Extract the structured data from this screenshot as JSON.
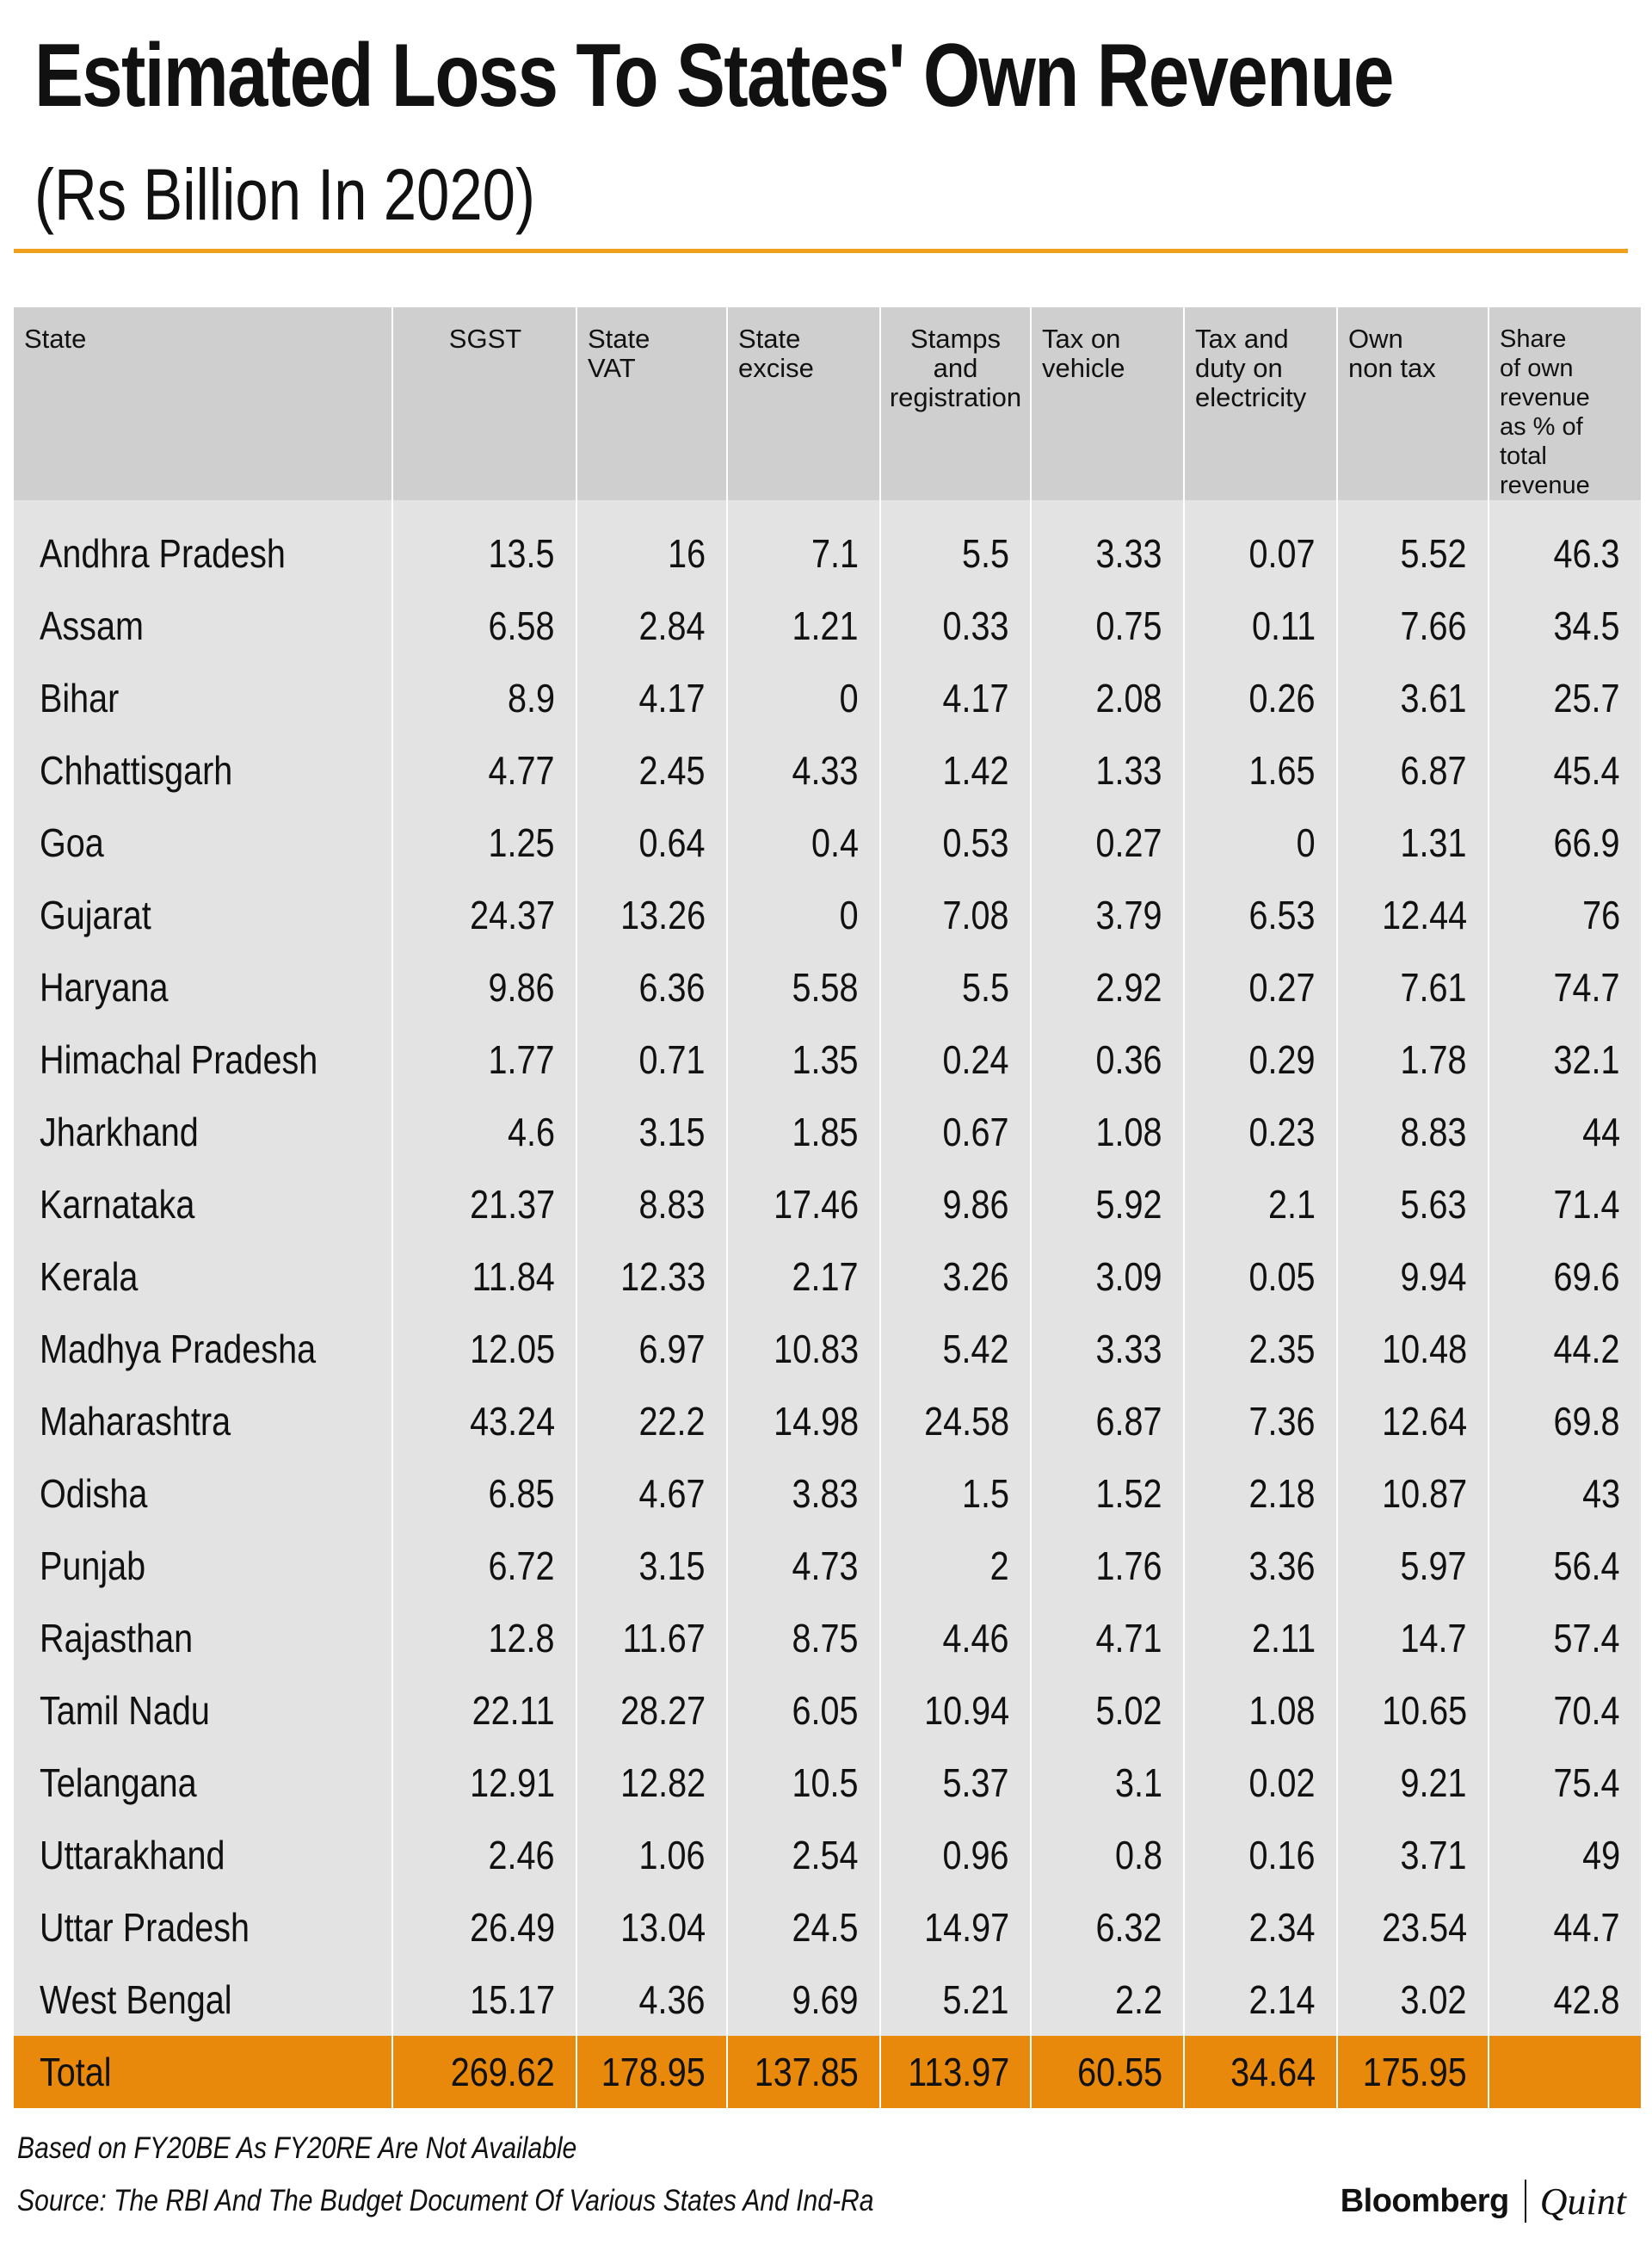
{
  "title": "Estimated Loss To States' Own Revenue",
  "subtitle": "(Rs Billion In 2020)",
  "colors": {
    "accent_rule": "#f0a01c",
    "total_row": "#e8890c",
    "header_bg": "#cfcfcf",
    "body_bg": "#e3e3e3"
  },
  "chart_data": {
    "type": "table",
    "title": "Estimated Loss To States' Own Revenue",
    "subtitle": "(Rs Billion In 2020)",
    "columns": [
      "State",
      "SGST",
      "State VAT",
      "State excise",
      "Stamps and registration",
      "Tax on vehicle",
      "Tax and duty on electricity",
      "Own non tax",
      "Share of own revenue as % of total revenue"
    ],
    "header_lines": [
      [
        "State"
      ],
      [
        "SGST"
      ],
      [
        "State",
        "VAT"
      ],
      [
        "State",
        "excise"
      ],
      [
        "Stamps",
        "and",
        "registration"
      ],
      [
        "Tax on",
        "vehicle"
      ],
      [
        "Tax and",
        "duty on",
        "electricity"
      ],
      [
        "Own",
        "non tax"
      ],
      [
        "Share",
        "of own",
        "revenue",
        "as % of total",
        "revenue"
      ]
    ],
    "rows": [
      [
        "Andhra Pradesh",
        "13.5",
        "16",
        "7.1",
        "5.5",
        "3.33",
        "0.07",
        "5.52",
        "46.3"
      ],
      [
        "Assam",
        "6.58",
        "2.84",
        "1.21",
        "0.33",
        "0.75",
        "0.11",
        "7.66",
        "34.5"
      ],
      [
        "Bihar",
        "8.9",
        "4.17",
        "0",
        "4.17",
        "2.08",
        "0.26",
        "3.61",
        "25.7"
      ],
      [
        "Chhattisgarh",
        "4.77",
        "2.45",
        "4.33",
        "1.42",
        "1.33",
        "1.65",
        "6.87",
        "45.4"
      ],
      [
        "Goa",
        "1.25",
        "0.64",
        "0.4",
        "0.53",
        "0.27",
        "0",
        "1.31",
        "66.9"
      ],
      [
        "Gujarat",
        "24.37",
        "13.26",
        "0",
        "7.08",
        "3.79",
        "6.53",
        "12.44",
        "76"
      ],
      [
        "Haryana",
        "9.86",
        "6.36",
        "5.58",
        "5.5",
        "2.92",
        "0.27",
        "7.61",
        "74.7"
      ],
      [
        "Himachal Pradesh",
        "1.77",
        "0.71",
        "1.35",
        "0.24",
        "0.36",
        "0.29",
        "1.78",
        "32.1"
      ],
      [
        "Jharkhand",
        "4.6",
        "3.15",
        "1.85",
        "0.67",
        "1.08",
        "0.23",
        "8.83",
        "44"
      ],
      [
        "Karnataka",
        "21.37",
        "8.83",
        "17.46",
        "9.86",
        "5.92",
        "2.1",
        "5.63",
        "71.4"
      ],
      [
        "Kerala",
        "11.84",
        "12.33",
        "2.17",
        "3.26",
        "3.09",
        "0.05",
        "9.94",
        "69.6"
      ],
      [
        "Madhya Pradesha",
        "12.05",
        "6.97",
        "10.83",
        "5.42",
        "3.33",
        "2.35",
        "10.48",
        "44.2"
      ],
      [
        "Maharashtra",
        "43.24",
        "22.2",
        "14.98",
        "24.58",
        "6.87",
        "7.36",
        "12.64",
        "69.8"
      ],
      [
        "Odisha",
        "6.85",
        "4.67",
        "3.83",
        "1.5",
        "1.52",
        "2.18",
        "10.87",
        "43"
      ],
      [
        "Punjab",
        "6.72",
        "3.15",
        "4.73",
        "2",
        "1.76",
        "3.36",
        "5.97",
        "56.4"
      ],
      [
        "Rajasthan",
        "12.8",
        "11.67",
        "8.75",
        "4.46",
        "4.71",
        "2.11",
        "14.7",
        "57.4"
      ],
      [
        "Tamil Nadu",
        "22.11",
        "28.27",
        "6.05",
        "10.94",
        "5.02",
        "1.08",
        "10.65",
        "70.4"
      ],
      [
        "Telangana",
        "12.91",
        "12.82",
        "10.5",
        "5.37",
        "3.1",
        "0.02",
        "9.21",
        "75.4"
      ],
      [
        "Uttarakhand",
        "2.46",
        "1.06",
        "2.54",
        "0.96",
        "0.8",
        "0.16",
        "3.71",
        "49"
      ],
      [
        "Uttar Pradesh",
        "26.49",
        "13.04",
        "24.5",
        "14.97",
        "6.32",
        "2.34",
        "23.54",
        "44.7"
      ],
      [
        "West Bengal",
        "15.17",
        "4.36",
        "9.69",
        "5.21",
        "2.2",
        "2.14",
        "3.02",
        "42.8"
      ]
    ],
    "total": [
      "Total",
      "269.62",
      "178.95",
      "137.85",
      "113.97",
      "60.55",
      "34.64",
      "175.95",
      ""
    ]
  },
  "footnotes": {
    "note": "Based on FY20BE As FY20RE Are Not Available",
    "source": "Source: The RBI And The Budget Document Of Various States And Ind-Ra"
  },
  "logo": {
    "left": "Bloomberg",
    "right": "Quint"
  }
}
